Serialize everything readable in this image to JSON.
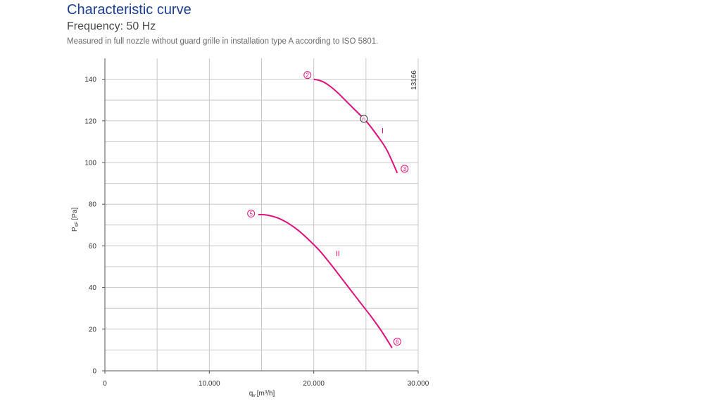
{
  "header": {
    "title": "Characteristic curve",
    "subtitle": "Frequency: 50 Hz",
    "note": "Measured in full nozzle without guard grille in installation type A according to ISO 5801."
  },
  "colors": {
    "curve": "#e0107a",
    "grid": "#c8c8c8",
    "title": "#1c3f94"
  },
  "chart_data": {
    "type": "line",
    "title": "",
    "xlabel": "q",
    "xlabel_sub": "v",
    "xlabel_unit": "[m³/h]",
    "ylabel": "P",
    "ylabel_sub": "sF",
    "ylabel_unit": "[Pa]",
    "xlim": [
      0,
      30000
    ],
    "ylim": [
      0,
      150
    ],
    "x_ticks": [
      0,
      10000,
      20000,
      30000
    ],
    "x_tick_labels": [
      "0",
      "10.000",
      "20.000",
      "30.000"
    ],
    "y_ticks": [
      0,
      20,
      40,
      60,
      80,
      100,
      120,
      140
    ],
    "y_tick_labels": [
      "0",
      "20",
      "40",
      "60",
      "80",
      "100",
      "120",
      "140"
    ],
    "grid": true,
    "corner_label": "13166",
    "series": [
      {
        "name": "I",
        "points": [
          [
            20000,
            140
          ],
          [
            20800,
            139
          ],
          [
            21600,
            136.5
          ],
          [
            22400,
            133
          ],
          [
            23200,
            129
          ],
          [
            24000,
            125
          ],
          [
            25000,
            120
          ],
          [
            26000,
            113.5
          ],
          [
            27000,
            106
          ],
          [
            28000,
            95
          ]
        ]
      },
      {
        "name": "II",
        "points": [
          [
            14700,
            75
          ],
          [
            15500,
            74.8
          ],
          [
            16500,
            73.5
          ],
          [
            17500,
            71
          ],
          [
            18500,
            67.5
          ],
          [
            19500,
            63
          ],
          [
            20500,
            58
          ],
          [
            21500,
            52
          ],
          [
            22500,
            45.5
          ],
          [
            23500,
            39
          ],
          [
            24500,
            32.5
          ],
          [
            25500,
            26
          ],
          [
            26500,
            19
          ],
          [
            27500,
            11
          ]
        ]
      }
    ],
    "markers": [
      {
        "label": "2",
        "x": 19400,
        "y": 142
      },
      {
        "label": "n",
        "x": 24800,
        "y": 121
      },
      {
        "label": "3",
        "x": 28700,
        "y": 97
      },
      {
        "label": "5",
        "x": 14000,
        "y": 75.5
      },
      {
        "label": "6",
        "x": 28000,
        "y": 14
      }
    ],
    "series_labels": [
      {
        "text": "I",
        "x": 26600,
        "y": 114
      },
      {
        "text": "II",
        "x": 22300,
        "y": 55
      }
    ]
  }
}
